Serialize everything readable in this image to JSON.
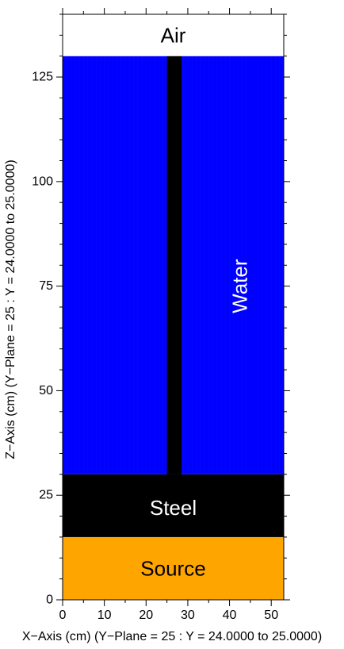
{
  "axes": {
    "x_label": "X−Axis (cm) (Y−Plane = 25 : Y = 24.0000 to 25.0000)",
    "z_label": "Z−Axis (cm) (Y−Plane = 25 : Y = 24.0000 to 25.0000)",
    "x_ticks": [
      0,
      10,
      20,
      30,
      40,
      50
    ],
    "z_ticks": [
      0,
      25,
      50,
      75,
      100,
      125
    ],
    "x_range": [
      0,
      53
    ],
    "z_range": [
      0,
      140
    ]
  },
  "regions": [
    {
      "label": "Source",
      "material": "source",
      "x": [
        0,
        53
      ],
      "z": [
        0,
        15
      ],
      "color": "#FFA500",
      "text_color": "#000000",
      "label_at": [
        26.5,
        7.5
      ]
    },
    {
      "label": "Steel",
      "material": "steel",
      "x": [
        0,
        53
      ],
      "z": [
        15,
        30
      ],
      "color": "#000000",
      "text_color": "#FFFFFF",
      "label_at": [
        26.5,
        22
      ]
    },
    {
      "label": "Water",
      "material": "water",
      "x": [
        0,
        53
      ],
      "z": [
        30,
        130
      ],
      "color": "#0000FF",
      "text_color": "#FFFFFF",
      "label_at": [
        42.5,
        75
      ],
      "vertical": true
    },
    {
      "label": "",
      "material": "steel-rod",
      "x": [
        25,
        28.5
      ],
      "z": [
        30,
        130
      ],
      "color": "#000000"
    },
    {
      "label": "Air",
      "material": "air",
      "x": [
        0,
        53
      ],
      "z": [
        130,
        140
      ],
      "color": "#FFFFFF",
      "text_color": "#000000",
      "label_at": [
        26.5,
        135
      ]
    }
  ],
  "colors": {
    "frame": "#000000",
    "mesh_line": "#1a1aff"
  }
}
